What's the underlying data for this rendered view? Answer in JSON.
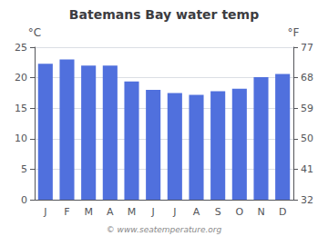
{
  "chart_data": {
    "type": "bar",
    "title": "Batemans Bay water temp",
    "categories": [
      "J",
      "F",
      "M",
      "A",
      "M",
      "J",
      "J",
      "A",
      "S",
      "O",
      "N",
      "D"
    ],
    "values": [
      22.3,
      23.0,
      22.0,
      22.0,
      19.4,
      18.0,
      17.5,
      17.2,
      17.8,
      18.2,
      20.1,
      20.6
    ],
    "ylim": [
      0,
      25
    ],
    "yticks": [
      0,
      5,
      10,
      15,
      20,
      25
    ],
    "ylabel": "°C",
    "y2lim": [
      32,
      77
    ],
    "y2ticks": [
      32,
      41,
      50,
      59,
      68,
      77
    ],
    "y2label": "°F",
    "grid": true,
    "annotations": [
      "© www.seatemperature.org"
    ]
  }
}
